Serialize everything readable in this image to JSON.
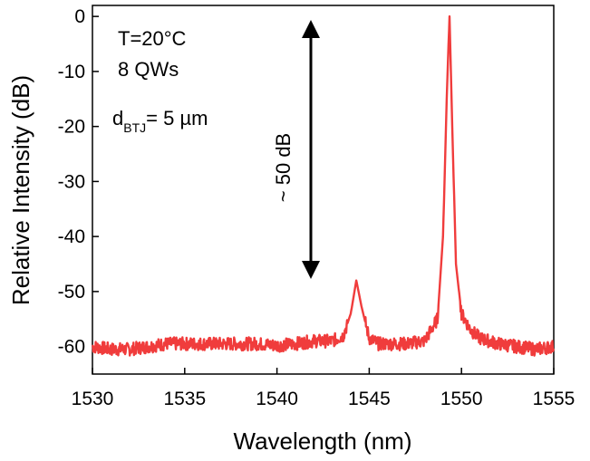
{
  "chart_data": {
    "type": "line",
    "xlabel": "Wavelength (nm)",
    "ylabel": "Relative Intensity (dB)",
    "xlim": [
      1530,
      1555
    ],
    "ylim": [
      -65,
      2
    ],
    "xticks": [
      1530,
      1535,
      1540,
      1545,
      1550,
      1555
    ],
    "yticks": [
      0,
      -10,
      -20,
      -30,
      -40,
      -50,
      -60
    ],
    "grid": false,
    "line_color": "#f03c3c",
    "annotations": {
      "temperature": "T=20°C",
      "qws": "8 QWs",
      "btj_d": "d",
      "btj_sub": "BTJ",
      "btj_value": "= 5 µm",
      "range_label": "~ 50 dB"
    },
    "series": [
      {
        "x": [
          1530,
          1531,
          1532,
          1533,
          1534,
          1535,
          1536,
          1537,
          1538,
          1539,
          1540,
          1541,
          1542,
          1543,
          1543.6,
          1544.0,
          1544.3,
          1544.6,
          1545.0,
          1545.5,
          1546,
          1547,
          1548,
          1548.7,
          1549.0,
          1549.2,
          1549.35,
          1549.5,
          1549.7,
          1550.0,
          1550.5,
          1551,
          1552,
          1553,
          1554,
          1555
        ],
        "y": [
          -60,
          -60.5,
          -60.5,
          -60,
          -59.5,
          -59.5,
          -59.5,
          -59.5,
          -59.5,
          -59.5,
          -59.8,
          -59.5,
          -59,
          -59,
          -58,
          -54,
          -48,
          -53,
          -58.5,
          -59.5,
          -59.5,
          -59.5,
          -59,
          -55,
          -40,
          -15,
          0,
          -20,
          -45,
          -54,
          -57,
          -58.5,
          -59.5,
          -60,
          -60.5,
          -60
        ]
      }
    ]
  }
}
